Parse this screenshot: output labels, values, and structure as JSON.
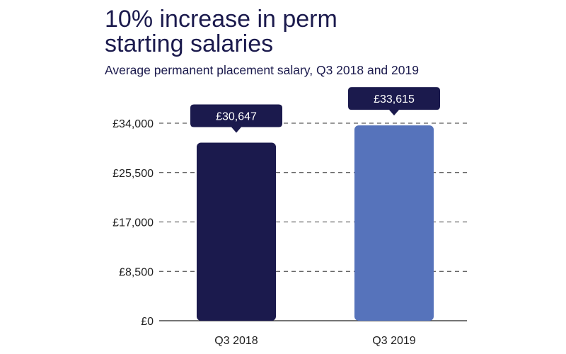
{
  "chart_data": {
    "type": "bar",
    "title": "10% increase in perm starting salaries",
    "title_lines": [
      "10% increase in perm",
      "starting salaries"
    ],
    "subtitle": "Average permanent placement salary, Q3 2018 and 2019",
    "categories": [
      "Q3 2018",
      "Q3 2019"
    ],
    "values": [
      30647,
      33615
    ],
    "value_labels": [
      "£30,647",
      "£33,615"
    ],
    "bar_colors": [
      "#1b1a4d",
      "#5673bb"
    ],
    "ylim": [
      0,
      34000
    ],
    "yticks": [
      0,
      8500,
      17000,
      25500,
      34000
    ],
    "ytick_labels": [
      "£0",
      "£8,500",
      "£17,000",
      "£25,500",
      "£34,000"
    ],
    "xlabel": "",
    "ylabel": "",
    "grid": "dashed horizontal",
    "callout_color": "#1b1a4d"
  }
}
